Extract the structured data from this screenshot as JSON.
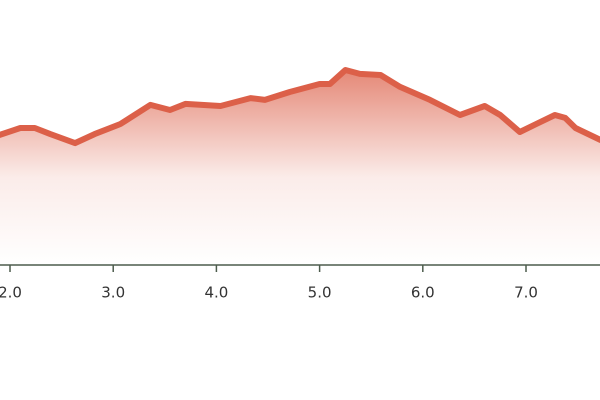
{
  "chart_data": {
    "type": "area",
    "x": [
      1.9,
      2.1,
      2.24,
      2.39,
      2.63,
      2.82,
      3.07,
      3.36,
      3.55,
      3.7,
      4.04,
      4.33,
      4.47,
      4.71,
      5.0,
      5.1,
      5.25,
      5.39,
      5.59,
      5.78,
      6.07,
      6.36,
      6.6,
      6.75,
      6.94,
      7.14,
      7.28,
      7.38,
      7.48,
      7.72
    ],
    "values": [
      4.91,
      5.17,
      5.17,
      4.94,
      4.6,
      4.94,
      5.32,
      6.04,
      5.85,
      6.08,
      6.0,
      6.3,
      6.23,
      6.53,
      6.83,
      6.83,
      7.36,
      7.21,
      7.17,
      6.72,
      6.23,
      5.66,
      6.0,
      5.66,
      5.02,
      5.4,
      5.66,
      5.55,
      5.17,
      4.72
    ],
    "color": "#dc6049",
    "xlim": [
      1.903,
      7.717
    ],
    "ylim": [
      0,
      10
    ],
    "xticks": [
      {
        "value": 2,
        "label": "2.0"
      },
      {
        "value": 3,
        "label": "3.0"
      },
      {
        "value": 4,
        "label": "4.0"
      },
      {
        "value": 5,
        "label": "5.0"
      },
      {
        "value": 6,
        "label": "6.0"
      },
      {
        "value": 7,
        "label": "7.0"
      }
    ]
  }
}
